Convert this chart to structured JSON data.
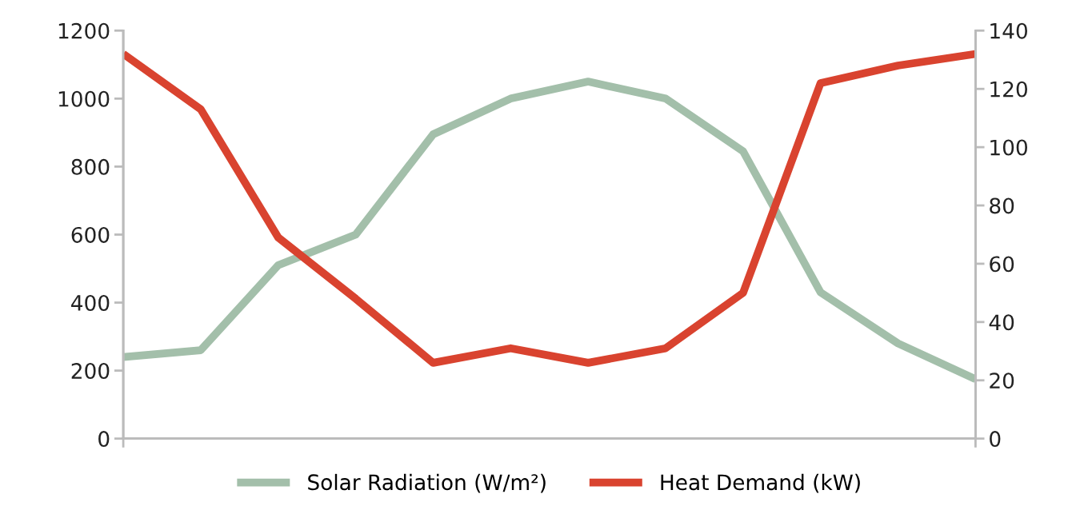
{
  "chart_data": {
    "type": "line",
    "categories": [
      null,
      null,
      null,
      null,
      null,
      null,
      null,
      null,
      null,
      null,
      null,
      null
    ],
    "series": [
      {
        "name": "Solar Radiation (W/m²)",
        "color": "#a3bfaa",
        "values": [
          240,
          260,
          510,
          600,
          895,
          1000,
          1050,
          1000,
          845,
          430,
          280,
          175
        ]
      },
      {
        "name": "Heat Demand (kW)",
        "color": "#d9432f",
        "axis": "y2",
        "values": [
          132,
          113,
          69,
          48,
          26,
          31,
          26,
          31,
          50,
          122,
          128,
          132
        ]
      }
    ],
    "ylim": [
      0,
      1200
    ],
    "yticks": [
      0,
      200,
      400,
      600,
      800,
      1000,
      1200
    ],
    "y2lim": [
      0,
      140
    ],
    "y2ticks": [
      0,
      20,
      40,
      60,
      80,
      100,
      120,
      140
    ],
    "grid": false,
    "legend": "bottom",
    "marker": "none",
    "line_style": "solid"
  }
}
